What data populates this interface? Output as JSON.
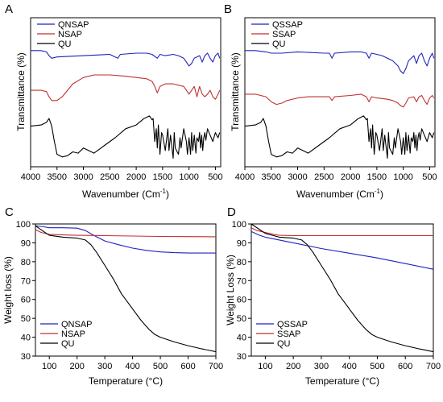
{
  "colors": {
    "blue": "#2020c0",
    "red": "#c03030",
    "black": "#000000"
  },
  "chart_data": [
    {
      "type": "line",
      "panel": "A",
      "xlabel": "Wavenumber (Cm",
      "xlabel_sup": "-1",
      "xlabel_close": ")",
      "ylabel": "Transmittance (%)",
      "xlim": [
        4000,
        400
      ],
      "x_reversed": true,
      "x_ticks": [
        "4000",
        "3500",
        "3000",
        "2500",
        "2000",
        "1500",
        "1000",
        "500"
      ],
      "y_ticks": [],
      "legend_position": "top-left",
      "series": [
        {
          "name": "QNSAP",
          "color": "#2020c0",
          "x": [
            4000,
            3800,
            3700,
            3650,
            3600,
            3500,
            3000,
            2500,
            2350,
            2300,
            2000,
            1800,
            1700,
            1600,
            1550,
            1450,
            1300,
            1200,
            1100,
            1050,
            1000,
            950,
            900,
            800,
            750,
            700,
            650,
            600,
            550,
            500,
            450,
            420
          ],
          "y": [
            0.86,
            0.86,
            0.85,
            0.82,
            0.8,
            0.81,
            0.82,
            0.83,
            0.8,
            0.83,
            0.84,
            0.84,
            0.83,
            0.8,
            0.83,
            0.82,
            0.83,
            0.82,
            0.8,
            0.77,
            0.74,
            0.76,
            0.8,
            0.82,
            0.77,
            0.82,
            0.84,
            0.8,
            0.77,
            0.82,
            0.84,
            0.8
          ]
        },
        {
          "name": "NSAP",
          "color": "#c03030",
          "x": [
            4000,
            3800,
            3700,
            3650,
            3600,
            3500,
            3400,
            3300,
            3200,
            3000,
            2800,
            2500,
            2200,
            2000,
            1800,
            1700,
            1650,
            1600,
            1550,
            1450,
            1300,
            1100,
            1050,
            1000,
            950,
            900,
            850,
            800,
            750,
            700,
            650,
            600,
            550,
            500,
            450,
            420
          ],
          "y": [
            0.55,
            0.55,
            0.54,
            0.5,
            0.47,
            0.47,
            0.5,
            0.55,
            0.6,
            0.65,
            0.67,
            0.67,
            0.66,
            0.65,
            0.64,
            0.62,
            0.58,
            0.53,
            0.58,
            0.6,
            0.6,
            0.58,
            0.55,
            0.52,
            0.55,
            0.58,
            0.5,
            0.58,
            0.52,
            0.5,
            0.52,
            0.55,
            0.5,
            0.48,
            0.52,
            0.55
          ]
        },
        {
          "name": "QU",
          "color": "#000000",
          "x": [
            4000,
            3800,
            3700,
            3650,
            3600,
            3550,
            3500,
            3400,
            3300,
            3200,
            3100,
            3000,
            2900,
            2800,
            2600,
            2400,
            2200,
            2000,
            1850,
            1750,
            1700,
            1680,
            1650,
            1620,
            1600,
            1580,
            1550,
            1520,
            1500,
            1450,
            1400,
            1380,
            1350,
            1300,
            1280,
            1260,
            1200,
            1170,
            1150,
            1100,
            1050,
            1030,
            1000,
            970,
            950,
            930,
            900,
            870,
            850,
            820,
            800,
            780,
            760,
            740,
            720,
            700,
            680,
            650,
            600,
            550,
            500,
            450,
            420
          ],
          "y": [
            0.27,
            0.28,
            0.3,
            0.33,
            0.27,
            0.15,
            0.05,
            0.03,
            0.04,
            0.07,
            0.06,
            0.1,
            0.08,
            0.06,
            0.12,
            0.18,
            0.25,
            0.28,
            0.33,
            0.35,
            0.32,
            0.33,
            0.15,
            0.25,
            0.1,
            0.28,
            0.05,
            0.22,
            0.2,
            0.08,
            0.25,
            0.08,
            0.2,
            0.02,
            0.22,
            0.1,
            0.05,
            0.18,
            0.1,
            0.25,
            0.15,
            0.05,
            0.18,
            0.05,
            0.22,
            0.08,
            0.2,
            0.06,
            0.18,
            0.15,
            0.22,
            0.1,
            0.2,
            0.08,
            0.18,
            0.22,
            0.16,
            0.25,
            0.2,
            0.15,
            0.22,
            0.18,
            0.22
          ]
        }
      ]
    },
    {
      "type": "line",
      "panel": "B",
      "xlabel": "Wavenumber (Cm",
      "xlabel_sup": "-1",
      "xlabel_close": ")",
      "ylabel": "Transmittance (%)",
      "xlim": [
        4000,
        400
      ],
      "x_reversed": true,
      "x_ticks": [
        "4000",
        "3500",
        "3000",
        "2500",
        "2000",
        "1500",
        "1000",
        "500"
      ],
      "y_ticks": [],
      "legend_position": "top-left",
      "series": [
        {
          "name": "QSSAP",
          "color": "#2020c0",
          "x": [
            4000,
            3800,
            3600,
            3500,
            3300,
            3000,
            2500,
            2400,
            2350,
            2300,
            2000,
            1800,
            1700,
            1650,
            1600,
            1500,
            1400,
            1300,
            1200,
            1100,
            1050,
            1000,
            950,
            900,
            800,
            750,
            700,
            650,
            600,
            550,
            500,
            450,
            420
          ],
          "y": [
            0.86,
            0.86,
            0.85,
            0.84,
            0.84,
            0.85,
            0.84,
            0.84,
            0.8,
            0.84,
            0.85,
            0.85,
            0.84,
            0.8,
            0.84,
            0.83,
            0.82,
            0.8,
            0.78,
            0.74,
            0.7,
            0.68,
            0.72,
            0.78,
            0.82,
            0.76,
            0.82,
            0.84,
            0.78,
            0.74,
            0.8,
            0.84,
            0.8
          ]
        },
        {
          "name": "SSAP",
          "color": "#c03030",
          "x": [
            4000,
            3800,
            3600,
            3500,
            3400,
            3300,
            3200,
            3000,
            2800,
            2500,
            2400,
            2350,
            2300,
            2000,
            1800,
            1700,
            1650,
            1600,
            1500,
            1300,
            1200,
            1100,
            1050,
            1000,
            950,
            900,
            800,
            750,
            700,
            650,
            600,
            550,
            500,
            450,
            420
          ],
          "y": [
            0.52,
            0.52,
            0.5,
            0.46,
            0.44,
            0.45,
            0.47,
            0.49,
            0.5,
            0.5,
            0.5,
            0.47,
            0.5,
            0.51,
            0.52,
            0.5,
            0.46,
            0.5,
            0.49,
            0.48,
            0.47,
            0.45,
            0.43,
            0.42,
            0.45,
            0.49,
            0.5,
            0.46,
            0.5,
            0.51,
            0.47,
            0.44,
            0.49,
            0.51,
            0.49
          ]
        },
        {
          "name": "QU",
          "color": "#000000",
          "x": [
            4000,
            3800,
            3700,
            3650,
            3600,
            3550,
            3500,
            3400,
            3300,
            3200,
            3100,
            3000,
            2900,
            2800,
            2600,
            2400,
            2200,
            2000,
            1850,
            1750,
            1700,
            1680,
            1650,
            1620,
            1600,
            1580,
            1550,
            1520,
            1500,
            1450,
            1400,
            1380,
            1350,
            1300,
            1280,
            1260,
            1200,
            1170,
            1150,
            1100,
            1050,
            1030,
            1000,
            970,
            950,
            930,
            900,
            870,
            850,
            820,
            800,
            780,
            760,
            740,
            720,
            700,
            680,
            650,
            600,
            550,
            500,
            450,
            420
          ],
          "y": [
            0.27,
            0.28,
            0.3,
            0.33,
            0.27,
            0.15,
            0.05,
            0.03,
            0.04,
            0.07,
            0.06,
            0.1,
            0.08,
            0.06,
            0.12,
            0.18,
            0.25,
            0.28,
            0.33,
            0.35,
            0.32,
            0.33,
            0.15,
            0.25,
            0.1,
            0.28,
            0.05,
            0.22,
            0.2,
            0.08,
            0.25,
            0.08,
            0.2,
            0.02,
            0.22,
            0.1,
            0.05,
            0.18,
            0.1,
            0.25,
            0.15,
            0.05,
            0.18,
            0.05,
            0.22,
            0.08,
            0.2,
            0.06,
            0.18,
            0.15,
            0.22,
            0.1,
            0.2,
            0.08,
            0.18,
            0.22,
            0.16,
            0.25,
            0.2,
            0.15,
            0.22,
            0.18,
            0.22
          ]
        }
      ]
    },
    {
      "type": "line",
      "panel": "C",
      "xlabel": "Temperature (°C)",
      "ylabel": "Weight loss (%)",
      "xlim": [
        50,
        700
      ],
      "ylim": [
        30,
        100
      ],
      "x_ticks": [
        "100",
        "200",
        "300",
        "400",
        "500",
        "600",
        "700"
      ],
      "y_ticks": [
        "30",
        "40",
        "50",
        "60",
        "70",
        "80",
        "90",
        "100"
      ],
      "legend_position": "bottom-left",
      "series": [
        {
          "name": "QNSAP",
          "color": "#2020c0",
          "x": [
            50,
            80,
            100,
            150,
            200,
            230,
            260,
            300,
            350,
            400,
            450,
            500,
            550,
            600,
            650,
            700
          ],
          "y": [
            99,
            98.5,
            98,
            98,
            97.8,
            96.5,
            94,
            91,
            89,
            87.2,
            86,
            85.2,
            84.8,
            84.6,
            84.6,
            84.6
          ]
        },
        {
          "name": "NSAP",
          "color": "#c03030",
          "x": [
            50,
            70,
            100,
            150,
            200,
            300,
            400,
            500,
            600,
            700
          ],
          "y": [
            97,
            95.5,
            94.5,
            94.2,
            94,
            93.8,
            93.6,
            93.4,
            93.3,
            93.2
          ]
        },
        {
          "name": "QU",
          "color": "#000000",
          "x": [
            50,
            80,
            100,
            150,
            200,
            230,
            250,
            270,
            300,
            330,
            360,
            400,
            430,
            460,
            480,
            500,
            550,
            600,
            650,
            700
          ],
          "y": [
            99,
            96,
            94,
            93,
            92.5,
            91.5,
            89,
            85,
            78,
            71,
            63,
            55,
            49,
            44,
            41.5,
            40,
            37.5,
            35.5,
            33.8,
            32.3
          ]
        }
      ]
    },
    {
      "type": "line",
      "panel": "D",
      "xlabel": "Temperature (°C)",
      "ylabel": "Weight Loss (%)",
      "xlim": [
        50,
        700
      ],
      "ylim": [
        30,
        100
      ],
      "x_ticks": [
        "100",
        "200",
        "300",
        "400",
        "500",
        "600",
        "700"
      ],
      "y_ticks": [
        "30",
        "40",
        "50",
        "60",
        "70",
        "80",
        "90",
        "100"
      ],
      "legend_position": "bottom-left",
      "series": [
        {
          "name": "QSSAP",
          "color": "#2020c0",
          "x": [
            50,
            80,
            100,
            150,
            200,
            300,
            400,
            500,
            600,
            700
          ],
          "y": [
            96,
            94,
            93,
            91.5,
            90,
            87,
            84.5,
            82,
            79,
            76
          ]
        },
        {
          "name": "SSAP",
          "color": "#c03030",
          "x": [
            50,
            70,
            100,
            130,
            150,
            200,
            300,
            400,
            500,
            600,
            700
          ],
          "y": [
            98,
            96.5,
            95.5,
            94.5,
            94,
            93.8,
            93.8,
            93.8,
            93.8,
            93.8,
            93.8
          ]
        },
        {
          "name": "QU",
          "color": "#000000",
          "x": [
            50,
            80,
            100,
            150,
            200,
            230,
            250,
            270,
            300,
            330,
            360,
            400,
            430,
            460,
            480,
            500,
            550,
            600,
            650,
            700
          ],
          "y": [
            100,
            97,
            95,
            93,
            92.5,
            91.5,
            89,
            85,
            78,
            71,
            63,
            55,
            49,
            44,
            41.5,
            40,
            37.5,
            35.5,
            33.8,
            32.3
          ]
        }
      ]
    }
  ]
}
